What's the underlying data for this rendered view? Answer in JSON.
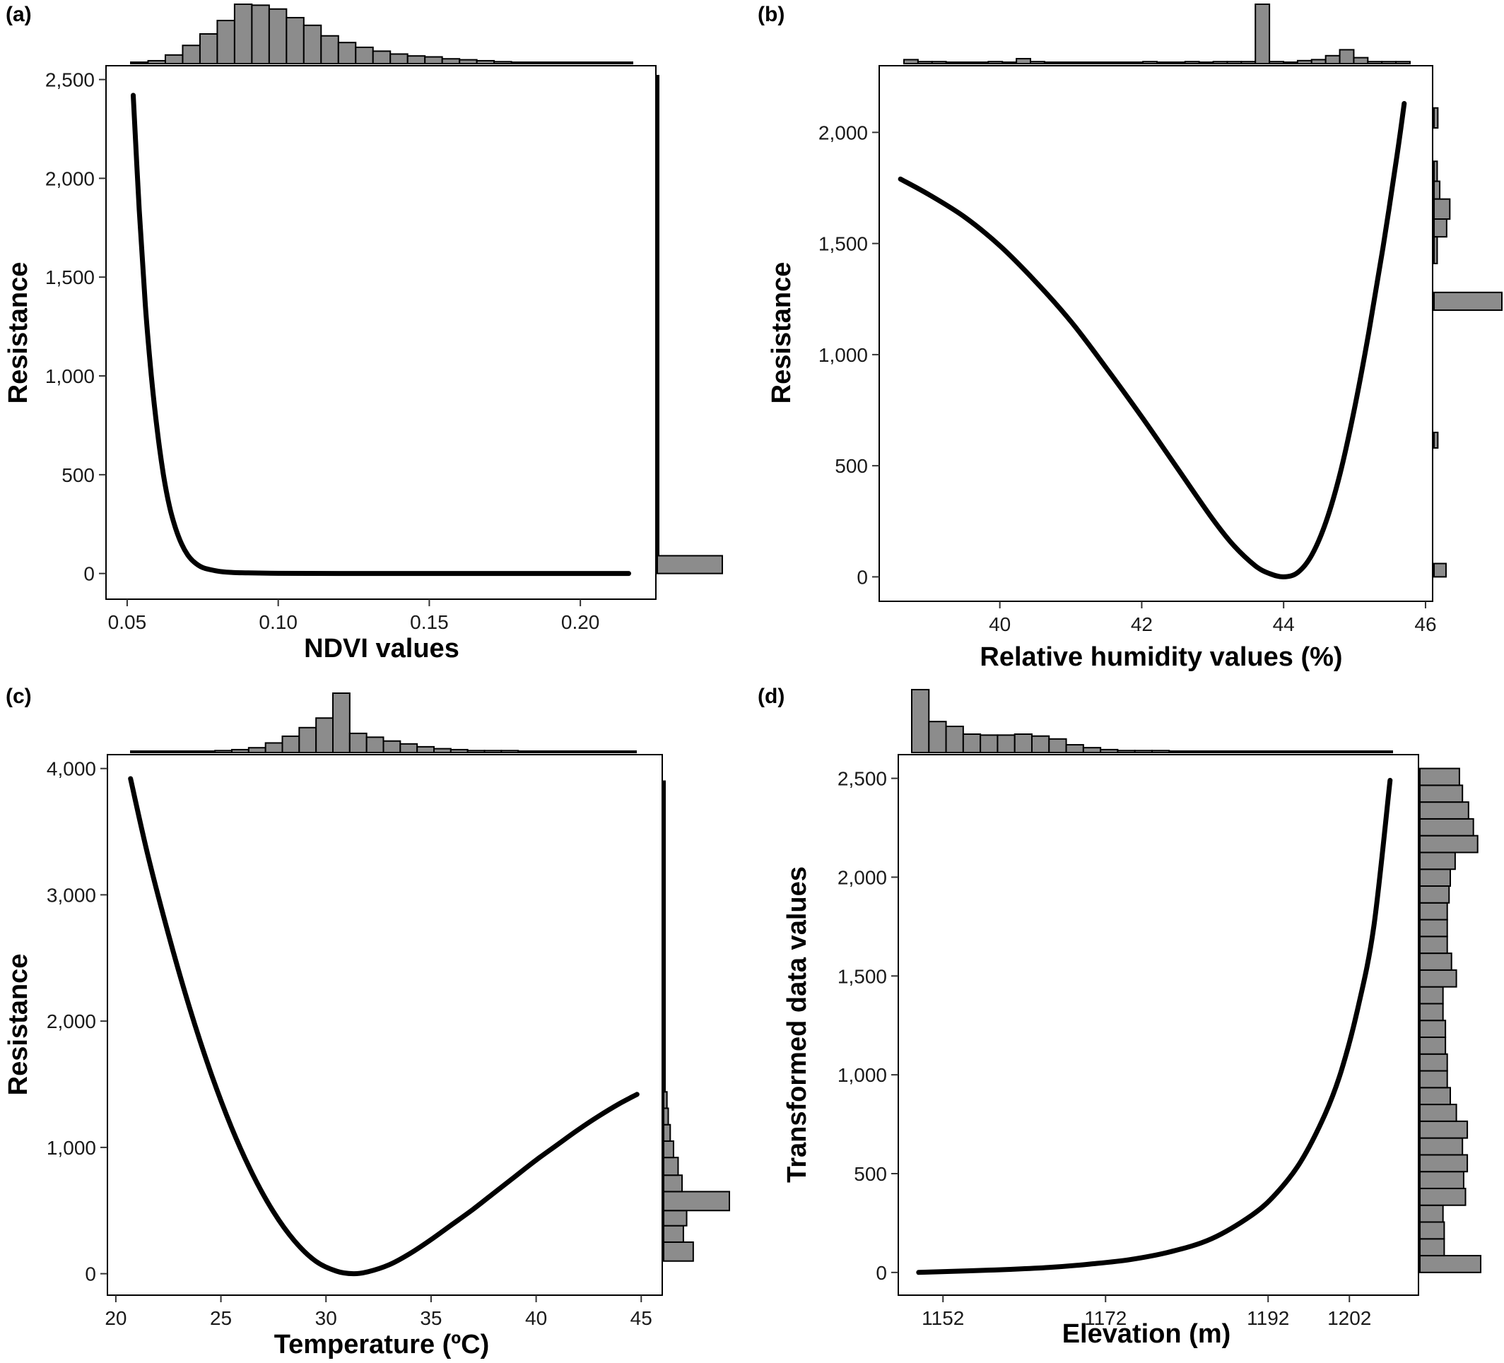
{
  "colors": {
    "curve": "#000000",
    "histogram_fill": "#8c8c8c",
    "histogram_stroke": "#000000",
    "background": "#ffffff"
  },
  "chart_data": [
    {
      "id": "a",
      "panel_label": "(a)",
      "type": "line",
      "xlabel": "NDVI values",
      "ylabel": "Resistance",
      "xlim": [
        0.043,
        0.225
      ],
      "ylim": [
        -130,
        2570
      ],
      "xticks": [
        0.05,
        0.1,
        0.15,
        0.2
      ],
      "xtick_labels": [
        "0.05",
        "0.10",
        "0.15",
        "0.20"
      ],
      "yticks": [
        0,
        500,
        1000,
        1500,
        2000,
        2500
      ],
      "ytick_labels": [
        "0",
        "500",
        "1,000",
        "1,500",
        "2,000",
        "2,500"
      ],
      "series": [
        {
          "x": [
            0.052,
            0.054,
            0.056,
            0.058,
            0.06,
            0.062,
            0.064,
            0.066,
            0.068,
            0.07,
            0.072,
            0.075,
            0.08,
            0.085,
            0.09,
            0.1,
            0.12,
            0.15,
            0.18,
            0.216
          ],
          "y": [
            2420,
            1840,
            1360,
            1000,
            720,
            500,
            340,
            230,
            150,
            95,
            60,
            30,
            12,
            5,
            3,
            1,
            0,
            0,
            0,
            0
          ]
        }
      ],
      "top_histogram": [
        1,
        3,
        9,
        19,
        31,
        45,
        62,
        61,
        57,
        48,
        40,
        29,
        22,
        17,
        13,
        10,
        8,
        7,
        5,
        4,
        3,
        2,
        1,
        1,
        1,
        1,
        1,
        1,
        1
      ],
      "right_histogram": [
        {
          "from": 1,
          "to": 2520,
          "value": 0.3
        },
        {
          "from": 0,
          "to": 90,
          "value": 100
        }
      ]
    },
    {
      "id": "b",
      "panel_label": "(b)",
      "type": "line",
      "xlabel": "Relative humidity values (%)",
      "ylabel": "Resistance",
      "xlim": [
        38.3,
        46.1
      ],
      "ylim": [
        -110,
        2300
      ],
      "xticks": [
        40,
        42,
        44,
        46
      ],
      "xtick_labels": [
        "40",
        "42",
        "44",
        "46"
      ],
      "yticks": [
        0,
        500,
        1000,
        1500,
        2000
      ],
      "ytick_labels": [
        "0",
        "500",
        "1,000",
        "1,500",
        "2,000"
      ],
      "series": [
        {
          "x": [
            38.6,
            39.0,
            39.5,
            40.0,
            40.5,
            41.0,
            41.5,
            42.0,
            42.5,
            43.0,
            43.3,
            43.6,
            43.8,
            44.0,
            44.2,
            44.4,
            44.6,
            44.8,
            45.0,
            45.2,
            45.4,
            45.6,
            45.7
          ],
          "y": [
            1790,
            1720,
            1620,
            1490,
            1330,
            1150,
            940,
            720,
            490,
            260,
            140,
            50,
            15,
            0,
            20,
            100,
            250,
            470,
            760,
            1100,
            1480,
            1900,
            2130
          ]
        }
      ],
      "top_histogram": [
        4,
        2,
        2,
        1,
        1,
        1,
        2,
        1,
        5,
        2,
        1,
        1,
        1,
        1,
        1,
        1,
        1,
        2,
        1,
        1,
        2,
        1,
        2,
        2,
        2,
        60,
        2,
        1,
        3,
        4,
        8,
        14,
        6,
        2,
        2,
        2
      ],
      "right_histogram": [
        {
          "from": 2020,
          "to": 2110,
          "value": 12
        },
        {
          "from": 1780,
          "to": 1870,
          "value": 10
        },
        {
          "from": 1700,
          "to": 1780,
          "value": 18
        },
        {
          "from": 1610,
          "to": 1700,
          "value": 50
        },
        {
          "from": 1530,
          "to": 1610,
          "value": 40
        },
        {
          "from": 1410,
          "to": 1530,
          "value": 10
        },
        {
          "from": 1200,
          "to": 1280,
          "value": 215
        },
        {
          "from": 580,
          "to": 650,
          "value": 12
        },
        {
          "from": 0,
          "to": 60,
          "value": 38
        }
      ]
    },
    {
      "id": "c",
      "panel_label": "(c)",
      "type": "line",
      "xlabel": "Temperature (ºC)",
      "ylabel": "Resistance",
      "xlim": [
        19.6,
        46.0
      ],
      "ylim": [
        -170,
        4110
      ],
      "xticks": [
        20,
        25,
        30,
        35,
        40,
        45
      ],
      "xtick_labels": [
        "20",
        "25",
        "30",
        "35",
        "40",
        "45"
      ],
      "yticks": [
        0,
        1000,
        2000,
        3000,
        4000
      ],
      "ytick_labels": [
        "0",
        "1,000",
        "2,000",
        "3,000",
        "4,000"
      ],
      "series": [
        {
          "x": [
            20.7,
            21.5,
            22.5,
            23.5,
            24.5,
            25.5,
            26.5,
            27.5,
            28.5,
            29.5,
            30.5,
            31.3,
            32.0,
            33.0,
            34.0,
            35.0,
            36.0,
            37.0,
            38.0,
            39.0,
            40.0,
            41.0,
            42.0,
            43.0,
            44.0,
            44.8
          ],
          "y": [
            3920,
            3330,
            2690,
            2110,
            1600,
            1160,
            790,
            490,
            260,
            100,
            20,
            0,
            15,
            70,
            160,
            270,
            390,
            510,
            640,
            770,
            900,
            1020,
            1140,
            1250,
            1350,
            1420
          ]
        }
      ],
      "top_histogram": [
        1,
        1,
        1,
        1,
        1,
        2,
        3,
        5,
        10,
        17,
        26,
        36,
        62,
        20,
        16,
        12,
        9,
        6,
        4,
        3,
        2,
        2,
        2,
        1,
        1,
        1,
        1,
        1,
        1,
        1
      ],
      "right_histogram": [
        {
          "from": 100,
          "to": 250,
          "value": 45
        },
        {
          "from": 250,
          "to": 380,
          "value": 30
        },
        {
          "from": 380,
          "to": 500,
          "value": 35
        },
        {
          "from": 500,
          "to": 650,
          "value": 100
        },
        {
          "from": 650,
          "to": 780,
          "value": 28
        },
        {
          "from": 780,
          "to": 920,
          "value": 22
        },
        {
          "from": 920,
          "to": 1050,
          "value": 15
        },
        {
          "from": 1050,
          "to": 1180,
          "value": 10
        },
        {
          "from": 1180,
          "to": 1310,
          "value": 7
        },
        {
          "from": 1310,
          "to": 1440,
          "value": 5
        },
        {
          "from": 1440,
          "to": 3900,
          "value": 2
        }
      ]
    },
    {
      "id": "d",
      "panel_label": "(d)",
      "type": "line",
      "xlabel": "Elevation (m)",
      "ylabel": "Transformed data values",
      "xlim": [
        1146.5,
        1210.5
      ],
      "ylim": [
        -115,
        2620
      ],
      "xticks": [
        1152,
        1172,
        1192,
        1202
      ],
      "xtick_labels": [
        "1152",
        "1172",
        "1192",
        "1202"
      ],
      "yticks": [
        0,
        500,
        1000,
        1500,
        2000,
        2500
      ],
      "ytick_labels": [
        "0",
        "500",
        "1,000",
        "1,500",
        "2,000",
        "2,500"
      ],
      "series": [
        {
          "x": [
            1149,
            1155,
            1160,
            1165,
            1170,
            1175,
            1180,
            1185,
            1190,
            1193,
            1196,
            1199,
            1201,
            1203,
            1205,
            1207
          ],
          "y": [
            0,
            8,
            15,
            25,
            42,
            65,
            105,
            170,
            290,
            400,
            560,
            800,
            1020,
            1330,
            1750,
            2490
          ]
        }
      ],
      "top_histogram": [
        65,
        32,
        27,
        19,
        18,
        18,
        19,
        17,
        14,
        8,
        5,
        3,
        2,
        2,
        2,
        1,
        1,
        1,
        1,
        1,
        1,
        1,
        1,
        1,
        1,
        1,
        1,
        1
      ],
      "right_histogram": [
        {
          "from": 0,
          "to": 85,
          "value": 100
        },
        {
          "from": 85,
          "to": 170,
          "value": 40
        },
        {
          "from": 170,
          "to": 255,
          "value": 40
        },
        {
          "from": 255,
          "to": 340,
          "value": 38
        },
        {
          "from": 340,
          "to": 425,
          "value": 75
        },
        {
          "from": 425,
          "to": 510,
          "value": 72
        },
        {
          "from": 510,
          "to": 595,
          "value": 78
        },
        {
          "from": 595,
          "to": 680,
          "value": 70
        },
        {
          "from": 680,
          "to": 765,
          "value": 78
        },
        {
          "from": 765,
          "to": 850,
          "value": 60
        },
        {
          "from": 850,
          "to": 935,
          "value": 50
        },
        {
          "from": 935,
          "to": 1020,
          "value": 45
        },
        {
          "from": 1020,
          "to": 1105,
          "value": 45
        },
        {
          "from": 1105,
          "to": 1190,
          "value": 42
        },
        {
          "from": 1190,
          "to": 1275,
          "value": 42
        },
        {
          "from": 1275,
          "to": 1360,
          "value": 38
        },
        {
          "from": 1360,
          "to": 1445,
          "value": 38
        },
        {
          "from": 1445,
          "to": 1530,
          "value": 60
        },
        {
          "from": 1530,
          "to": 1615,
          "value": 52
        },
        {
          "from": 1615,
          "to": 1700,
          "value": 45
        },
        {
          "from": 1700,
          "to": 1785,
          "value": 45
        },
        {
          "from": 1785,
          "to": 1870,
          "value": 45
        },
        {
          "from": 1870,
          "to": 1955,
          "value": 48
        },
        {
          "from": 1955,
          "to": 2040,
          "value": 50
        },
        {
          "from": 2040,
          "to": 2125,
          "value": 58
        },
        {
          "from": 2125,
          "to": 2210,
          "value": 95
        },
        {
          "from": 2210,
          "to": 2295,
          "value": 88
        },
        {
          "from": 2295,
          "to": 2380,
          "value": 80
        },
        {
          "from": 2380,
          "to": 2465,
          "value": 70
        },
        {
          "from": 2465,
          "to": 2550,
          "value": 65
        }
      ]
    }
  ]
}
